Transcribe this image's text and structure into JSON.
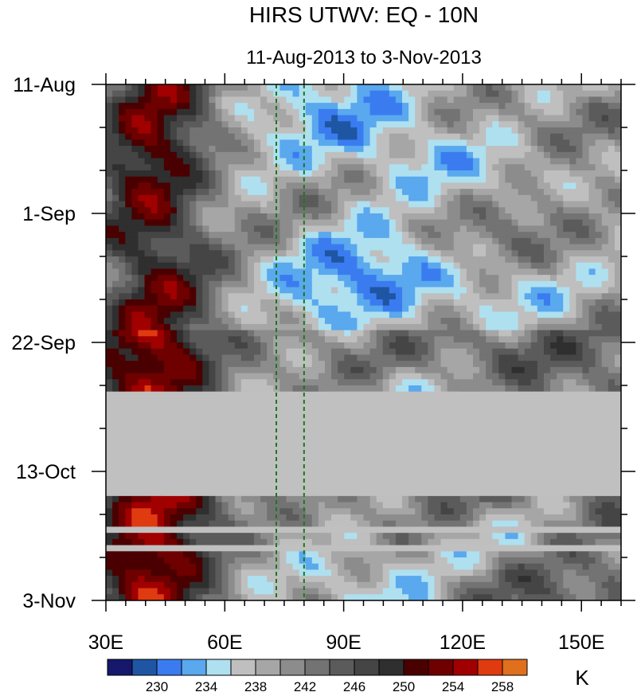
{
  "chart_data": {
    "type": "heatmap",
    "title": "HIRS UTWV: EQ - 10N",
    "subtitle": "11-Aug-2013 to 3-Nov-2013",
    "x_ticks": [
      {
        "value": 30,
        "label": "30E"
      },
      {
        "value": 60,
        "label": "60E"
      },
      {
        "value": 90,
        "label": "90E"
      },
      {
        "value": 120,
        "label": "120E"
      },
      {
        "value": 150,
        "label": "150E"
      }
    ],
    "xlim": [
      30,
      160
    ],
    "y_ticks": [
      {
        "value": "2013-08-11",
        "label": "11-Aug"
      },
      {
        "value": "2013-09-01",
        "label": "1-Sep"
      },
      {
        "value": "2013-09-22",
        "label": "22-Sep"
      },
      {
        "value": "2013-10-13",
        "label": "13-Oct"
      },
      {
        "value": "2013-11-03",
        "label": "3-Nov"
      }
    ],
    "ylim": [
      "2013-08-11",
      "2013-11-03"
    ],
    "y_reversed": true,
    "reference_lines": [
      {
        "lon": 73,
        "color": "#1a7a1a",
        "style": "dashed"
      },
      {
        "lon": 80,
        "color": "#1a7a1a",
        "style": "dashed"
      }
    ],
    "missing_periods": [
      [
        "2013-09-30",
        "2013-10-17"
      ],
      [
        "2013-10-22",
        "2013-10-23"
      ],
      [
        "2013-10-25",
        "2013-10-26"
      ]
    ],
    "missing_color": "#c0c0c0",
    "colorbar": {
      "unit_label": "K",
      "levels": [
        228,
        230,
        232,
        234,
        236,
        238,
        240,
        242,
        244,
        246,
        248,
        250,
        252,
        254,
        256,
        258
      ],
      "labeled_levels": [
        230,
        234,
        238,
        242,
        246,
        250,
        254,
        258
      ],
      "colors": [
        "#15186b",
        "#1e56a3",
        "#3a7cf0",
        "#5aa8ee",
        "#aee0f0",
        "#bfbfbf",
        "#a6a6a6",
        "#8c8c8c",
        "#737373",
        "#5b5b5b",
        "#454545",
        "#2f2f2f",
        "#4a0000",
        "#6e0000",
        "#a00000",
        "#e03a10",
        "#e0701e"
      ]
    }
  }
}
